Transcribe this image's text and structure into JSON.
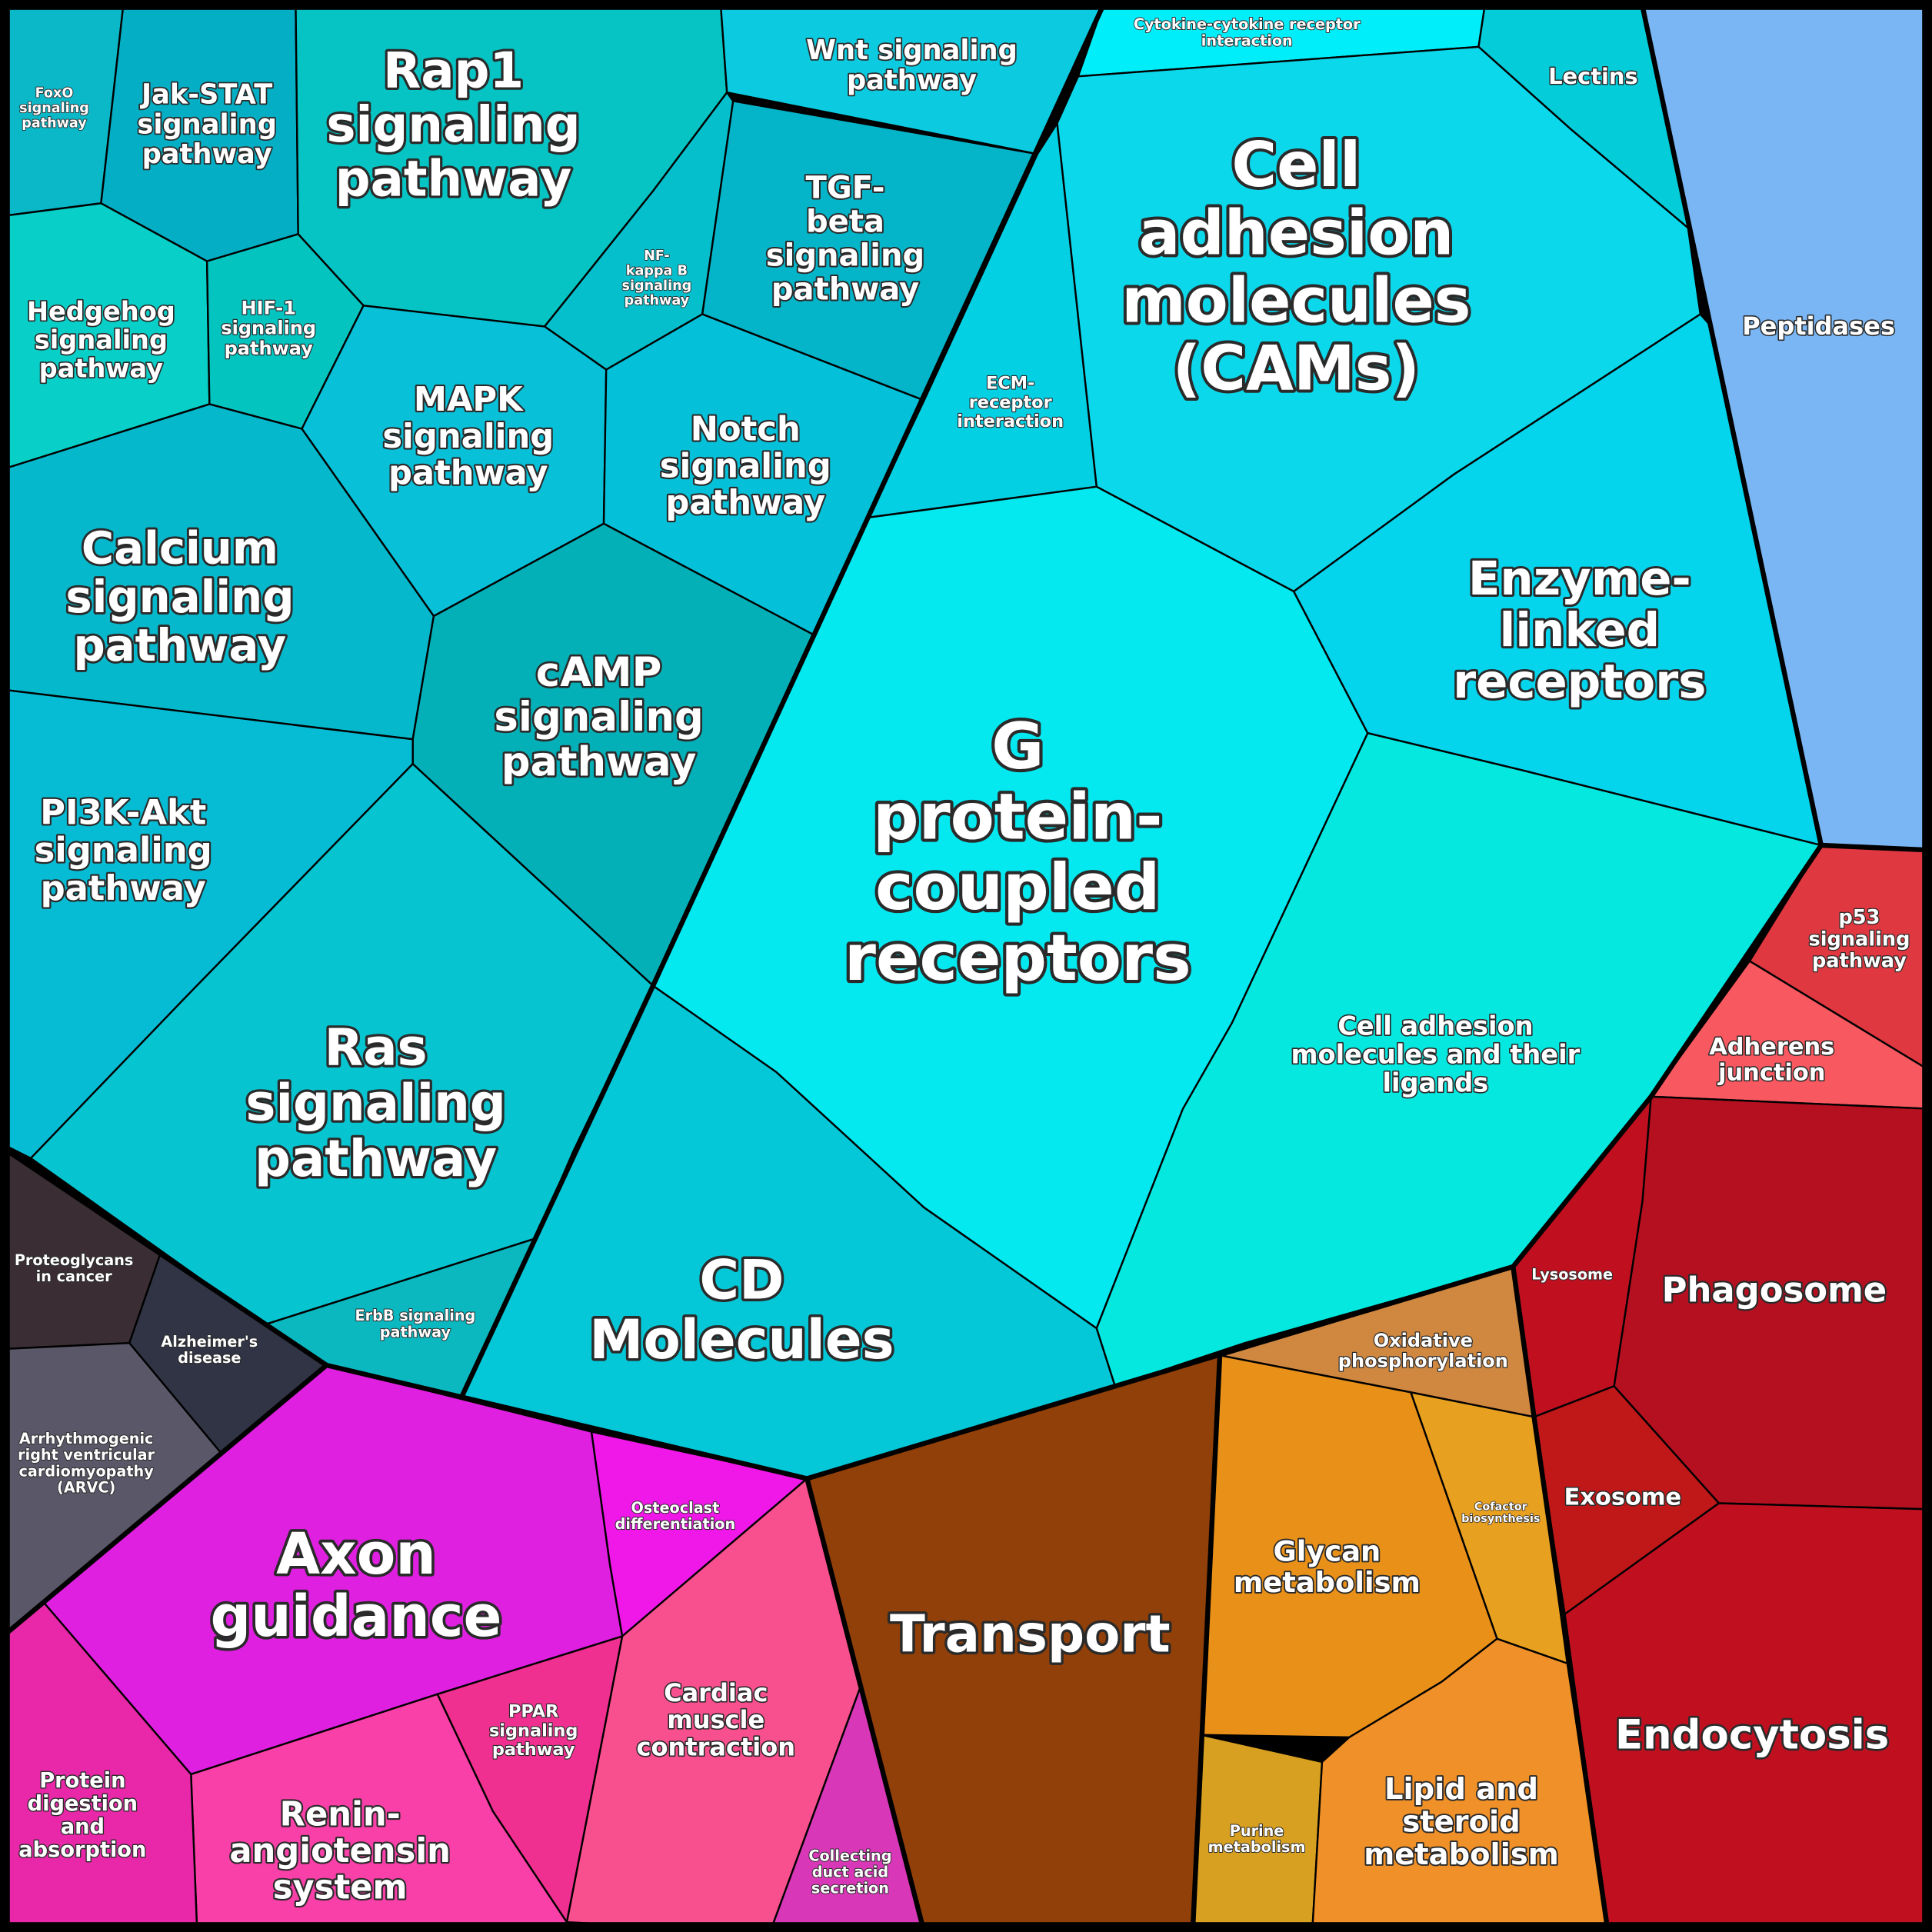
{
  "cells": [
    {
      "label": [
        "FoxO",
        "signaling",
        "pathway"
      ]
    },
    {
      "label": [
        "Jak-STAT",
        "signaling",
        "pathway"
      ]
    },
    {
      "label": [
        "Rap1",
        "signaling",
        "pathway"
      ]
    },
    {
      "label": [
        "Wnt signaling",
        "pathway"
      ]
    },
    {
      "label": [
        "Cytokine-cytokine receptor",
        "interaction"
      ]
    },
    {
      "label": [
        "Lectins"
      ]
    },
    {
      "label": [
        "NF-",
        "kappa B",
        "signaling",
        "pathway"
      ]
    },
    {
      "label": [
        "TGF-",
        "beta",
        "signaling",
        "pathway"
      ]
    },
    {
      "label": [
        "Hedgehog",
        "signaling",
        "pathway"
      ]
    },
    {
      "label": [
        "HIF-1",
        "signaling",
        "pathway"
      ]
    },
    {
      "label": [
        "MAPK",
        "signaling",
        "pathway"
      ]
    },
    {
      "label": [
        "Notch",
        "signaling",
        "pathway"
      ]
    },
    {
      "label": [
        "Calcium",
        "signaling",
        "pathway"
      ]
    },
    {
      "label": [
        "cAMP",
        "signaling",
        "pathway"
      ]
    },
    {
      "label": [
        "PI3K-Akt",
        "signaling",
        "pathway"
      ]
    },
    {
      "label": [
        "Ras",
        "signaling",
        "pathway"
      ]
    },
    {
      "label": [
        "ErbB signaling",
        "pathway"
      ]
    },
    {
      "label": [
        "CD",
        "Molecules"
      ]
    },
    {
      "label": [
        "ECM-",
        "receptor",
        "interaction"
      ]
    },
    {
      "label": [
        "Cell",
        "adhesion",
        "molecules",
        "(CAMs)"
      ]
    },
    {
      "label": [
        "G",
        "protein-",
        "coupled",
        "receptors"
      ]
    },
    {
      "label": [
        "Enzyme-",
        "linked",
        "receptors"
      ]
    },
    {
      "label": [
        "Cell adhesion",
        "molecules and their",
        "ligands"
      ]
    },
    {
      "label": [
        "Peptidases"
      ]
    },
    {
      "label": [
        "p53",
        "signaling",
        "pathway"
      ]
    },
    {
      "label": [
        "Adherens",
        "junction"
      ]
    },
    {
      "label": [
        "Lysosome"
      ]
    },
    {
      "label": [
        "Phagosome"
      ]
    },
    {
      "label": [
        "Exosome"
      ]
    },
    {
      "label": [
        "Endocytosis"
      ]
    },
    {
      "label": [
        "Oxidative",
        "phosphorylation"
      ]
    },
    {
      "label": [
        "Cofactor",
        "biosynthesis"
      ]
    },
    {
      "label": [
        "Glycan",
        "metabolism"
      ]
    },
    {
      "label": [
        "Purine",
        "metabolism"
      ]
    },
    {
      "label": [
        "Lipid and",
        "steroid",
        "metabolism"
      ]
    },
    {
      "label": [
        "Transport"
      ]
    },
    {
      "label": [
        "Osteoclast",
        "differentiation"
      ]
    },
    {
      "label": [
        "Axon",
        "guidance"
      ]
    },
    {
      "label": [
        "Cardiac",
        "muscle",
        "contraction"
      ]
    },
    {
      "label": [
        "Collecting",
        "duct acid",
        "secretion"
      ]
    },
    {
      "label": [
        "PPAR",
        "signaling",
        "pathway"
      ]
    },
    {
      "label": [
        "Renin-",
        "angiotensin",
        "system"
      ]
    },
    {
      "label": [
        "Protein",
        "digestion",
        "and",
        "absorption"
      ]
    },
    {
      "label": [
        "Proteoglycans",
        "in cancer"
      ]
    },
    {
      "label": [
        "Alzheimer's",
        "disease"
      ]
    },
    {
      "label": [
        "Arrhythmogenic",
        "right ventricular",
        "cardiomyopathy",
        "(ARVC)"
      ]
    }
  ]
}
